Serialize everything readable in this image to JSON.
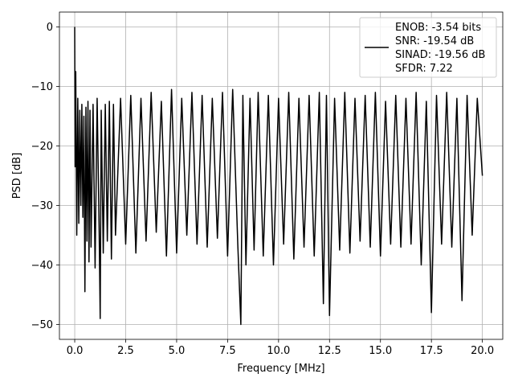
{
  "chart_data": {
    "type": "line",
    "xlabel": "Frequency [MHz]",
    "ylabel": "PSD [dB]",
    "xlim": [
      -0.75,
      21.0
    ],
    "ylim": [
      -52.5,
      2.5
    ],
    "xticks": [
      0.0,
      2.5,
      5.0,
      7.5,
      10.0,
      12.5,
      15.0,
      17.5,
      20.0
    ],
    "xtick_labels": [
      "0.0",
      "2.5",
      "5.0",
      "7.5",
      "10.0",
      "12.5",
      "15.0",
      "17.5",
      "20.0"
    ],
    "yticks": [
      0,
      -10,
      -20,
      -30,
      -40,
      -50
    ],
    "ytick_labels": [
      "0",
      "−10",
      "−20",
      "−30",
      "−40",
      "−50"
    ],
    "grid": true,
    "legend_position": "top-right",
    "series": [
      {
        "name": "ENOB: -3.54 bits\nSNR: -19.54 dB\nSINAD: -19.56 dB\nSFDR: 7.22",
        "legend_lines": [
          "ENOB: -3.54 bits",
          "SNR: -19.54 dB",
          "SINAD: -19.56 dB",
          "SFDR: 7.22"
        ],
        "color": "#000000",
        "x": [
          0.0,
          0.02,
          0.05,
          0.1,
          0.15,
          0.2,
          0.25,
          0.3,
          0.35,
          0.4,
          0.45,
          0.5,
          0.55,
          0.6,
          0.65,
          0.7,
          0.75,
          0.8,
          0.9,
          1.0,
          1.1,
          1.2,
          1.25,
          1.3,
          1.4,
          1.5,
          1.6,
          1.7,
          1.8,
          1.9,
          2.0,
          2.25,
          2.5,
          2.75,
          3.0,
          3.25,
          3.5,
          3.75,
          4.0,
          4.25,
          4.5,
          4.75,
          5.0,
          5.25,
          5.5,
          5.75,
          6.0,
          6.25,
          6.5,
          6.75,
          7.0,
          7.25,
          7.5,
          7.75,
          8.0,
          8.15,
          8.25,
          8.4,
          8.6,
          8.8,
          9.0,
          9.25,
          9.5,
          9.75,
          10.0,
          10.25,
          10.5,
          10.75,
          11.0,
          11.25,
          11.5,
          11.75,
          12.0,
          12.2,
          12.35,
          12.5,
          12.75,
          13.0,
          13.25,
          13.5,
          13.75,
          14.0,
          14.25,
          14.5,
          14.75,
          15.0,
          15.25,
          15.5,
          15.75,
          16.0,
          16.25,
          16.5,
          16.75,
          17.0,
          17.25,
          17.5,
          17.75,
          18.0,
          18.25,
          18.5,
          18.75,
          19.0,
          19.25,
          19.5,
          19.75,
          20.0
        ],
        "y": [
          0.0,
          -23.5,
          -7.5,
          -35.0,
          -12.0,
          -33.0,
          -14.0,
          -30.0,
          -13.0,
          -32.0,
          -15.0,
          -44.5,
          -13.5,
          -36.0,
          -12.5,
          -39.5,
          -14.0,
          -37.0,
          -13.0,
          -40.5,
          -12.0,
          -34.5,
          -49.0,
          -14.0,
          -38.0,
          -13.0,
          -36.0,
          -12.5,
          -39.0,
          -13.0,
          -35.0,
          -12.0,
          -36.5,
          -11.5,
          -38.0,
          -12.0,
          -36.0,
          -11.0,
          -34.5,
          -12.5,
          -38.5,
          -10.5,
          -38.0,
          -12.0,
          -35.0,
          -11.0,
          -36.5,
          -11.5,
          -37.0,
          -12.0,
          -35.5,
          -11.0,
          -38.5,
          -10.5,
          -36.5,
          -50.0,
          -11.5,
          -40.0,
          -12.0,
          -37.5,
          -11.0,
          -38.5,
          -11.5,
          -40.0,
          -12.0,
          -36.5,
          -11.0,
          -39.0,
          -12.0,
          -37.0,
          -11.5,
          -38.5,
          -11.0,
          -46.5,
          -11.5,
          -48.5,
          -12.0,
          -37.5,
          -11.0,
          -38.0,
          -12.0,
          -36.0,
          -11.5,
          -37.0,
          -11.0,
          -38.5,
          -12.5,
          -36.5,
          -11.5,
          -37.0,
          -12.0,
          -36.5,
          -11.0,
          -40.0,
          -12.5,
          -48.0,
          -11.5,
          -36.5,
          -11.0,
          -37.0,
          -12.0,
          -46.0,
          -11.5,
          -35.0,
          -12.0,
          -25.0
        ]
      }
    ]
  }
}
